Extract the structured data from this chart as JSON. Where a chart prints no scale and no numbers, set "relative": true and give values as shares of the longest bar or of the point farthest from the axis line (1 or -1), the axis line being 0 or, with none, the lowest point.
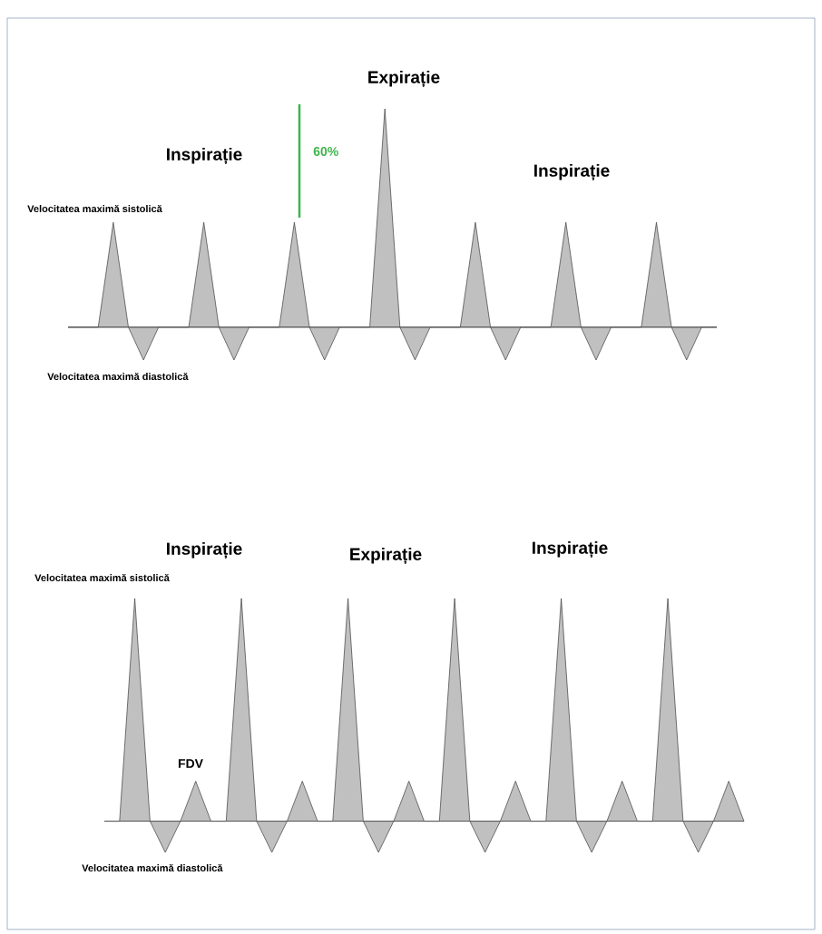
{
  "chart_data": [
    {
      "type": "area",
      "relative": true,
      "color": "#c0c0c0",
      "categories": [
        null,
        null,
        null,
        null,
        null,
        null,
        null,
        null,
        null,
        null,
        null,
        null,
        null,
        null,
        null,
        null,
        null,
        null,
        null,
        null,
        null,
        null,
        null,
        null,
        null,
        null,
        null,
        null,
        null,
        null,
        null,
        null,
        null,
        null,
        null,
        null,
        null,
        null,
        null,
        null,
        null,
        null,
        null,
        null
      ],
      "values": [
        0,
        0,
        0,
        0.48,
        0,
        -0.15,
        0,
        0,
        0,
        0.48,
        0,
        -0.15,
        0,
        0,
        0,
        0.48,
        0,
        -0.15,
        0,
        0,
        0,
        1,
        0,
        -0.15,
        0,
        0,
        0,
        0.48,
        0,
        -0.15,
        0,
        0,
        0,
        0.48,
        0,
        -0.15,
        0,
        0,
        0,
        0.48,
        0,
        -0.15,
        0,
        0
      ],
      "annotations": [
        "Inspirație",
        "Expirație",
        "Inspirație",
        "Velocitatea maximă sistolică",
        "Velocitatea maximă diastolică",
        "60%"
      ]
    },
    {
      "type": "area",
      "relative": true,
      "color": "#c0c0c0",
      "categories": [
        null,
        null,
        null,
        null,
        null,
        null,
        null,
        null,
        null,
        null,
        null,
        null,
        null,
        null,
        null,
        null,
        null,
        null,
        null,
        null,
        null,
        null,
        null,
        null,
        null,
        null,
        null,
        null,
        null,
        null,
        null,
        null,
        null,
        null,
        null,
        null,
        null,
        null,
        null,
        null,
        null,
        null,
        null
      ],
      "values": [
        0,
        0,
        1,
        0,
        -0.14,
        0,
        0.18,
        0,
        0,
        1,
        0,
        -0.14,
        0,
        0.18,
        0,
        0,
        1,
        0,
        -0.14,
        0,
        0.18,
        0,
        0,
        1,
        0,
        -0.14,
        0,
        0.18,
        0,
        0,
        1,
        0,
        -0.14,
        0,
        0.18,
        0,
        0,
        1,
        0,
        -0.14,
        0,
        0.18,
        0
      ],
      "annotations": [
        "Inspirație",
        "Expirație",
        "Inspirație",
        "Velocitatea maximă sistolică",
        "FDV",
        "Velocitatea maximă diastolică"
      ]
    }
  ]
}
